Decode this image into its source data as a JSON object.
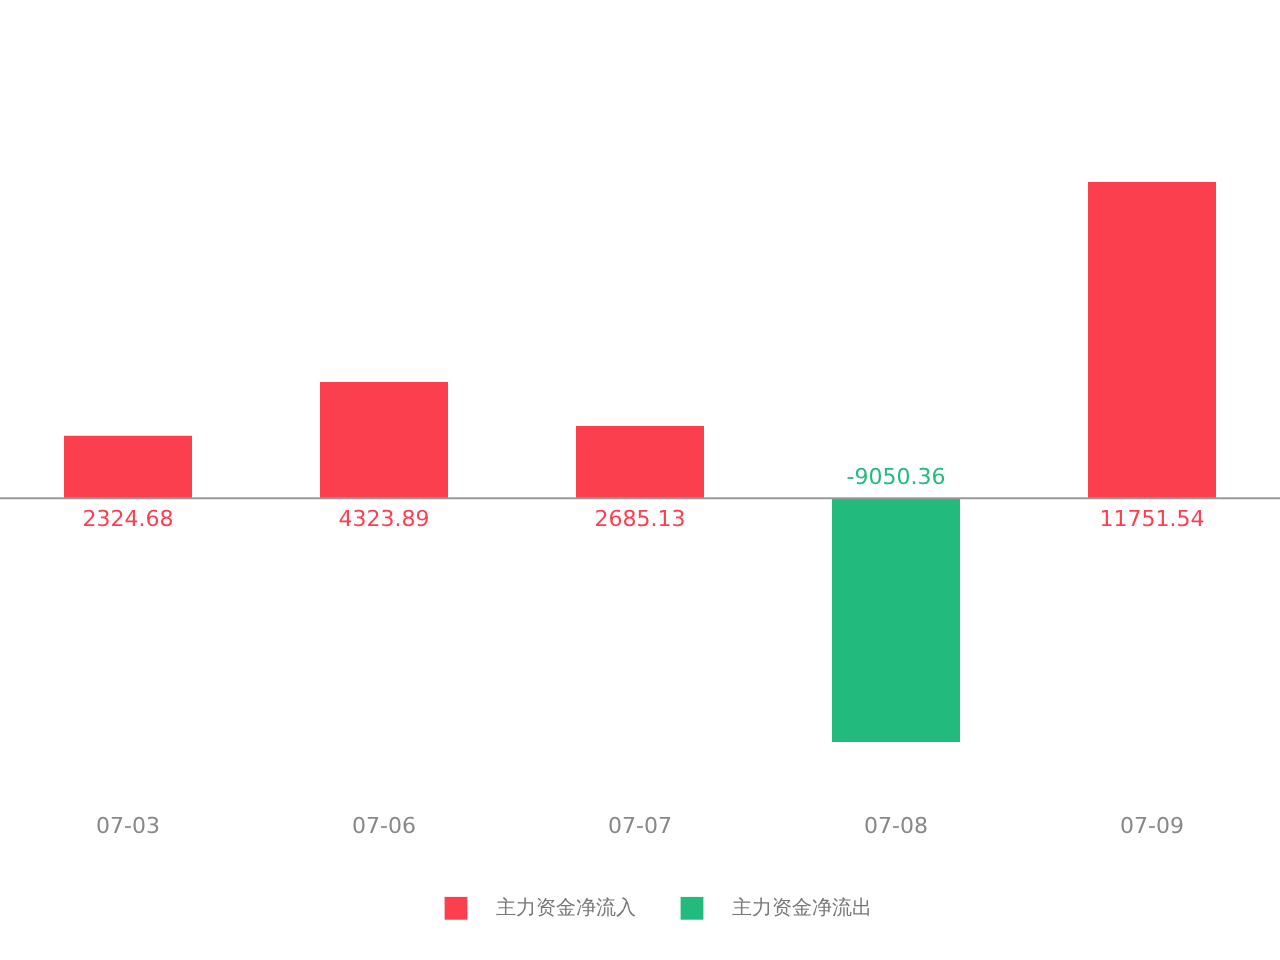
{
  "chart_data": {
    "type": "bar",
    "categories": [
      "07-03",
      "07-06",
      "07-07",
      "07-08",
      "07-09"
    ],
    "series": [
      {
        "name": "主力资金净流入",
        "color": "#fc3f4f",
        "values": [
          2324.68,
          4323.89,
          2685.13,
          null,
          11751.54
        ]
      },
      {
        "name": "主力资金净流出",
        "color": "#22bb7d",
        "values": [
          null,
          null,
          null,
          -9050.36,
          null
        ]
      }
    ],
    "data_labels": true,
    "legend": "bottom",
    "grid": false
  }
}
